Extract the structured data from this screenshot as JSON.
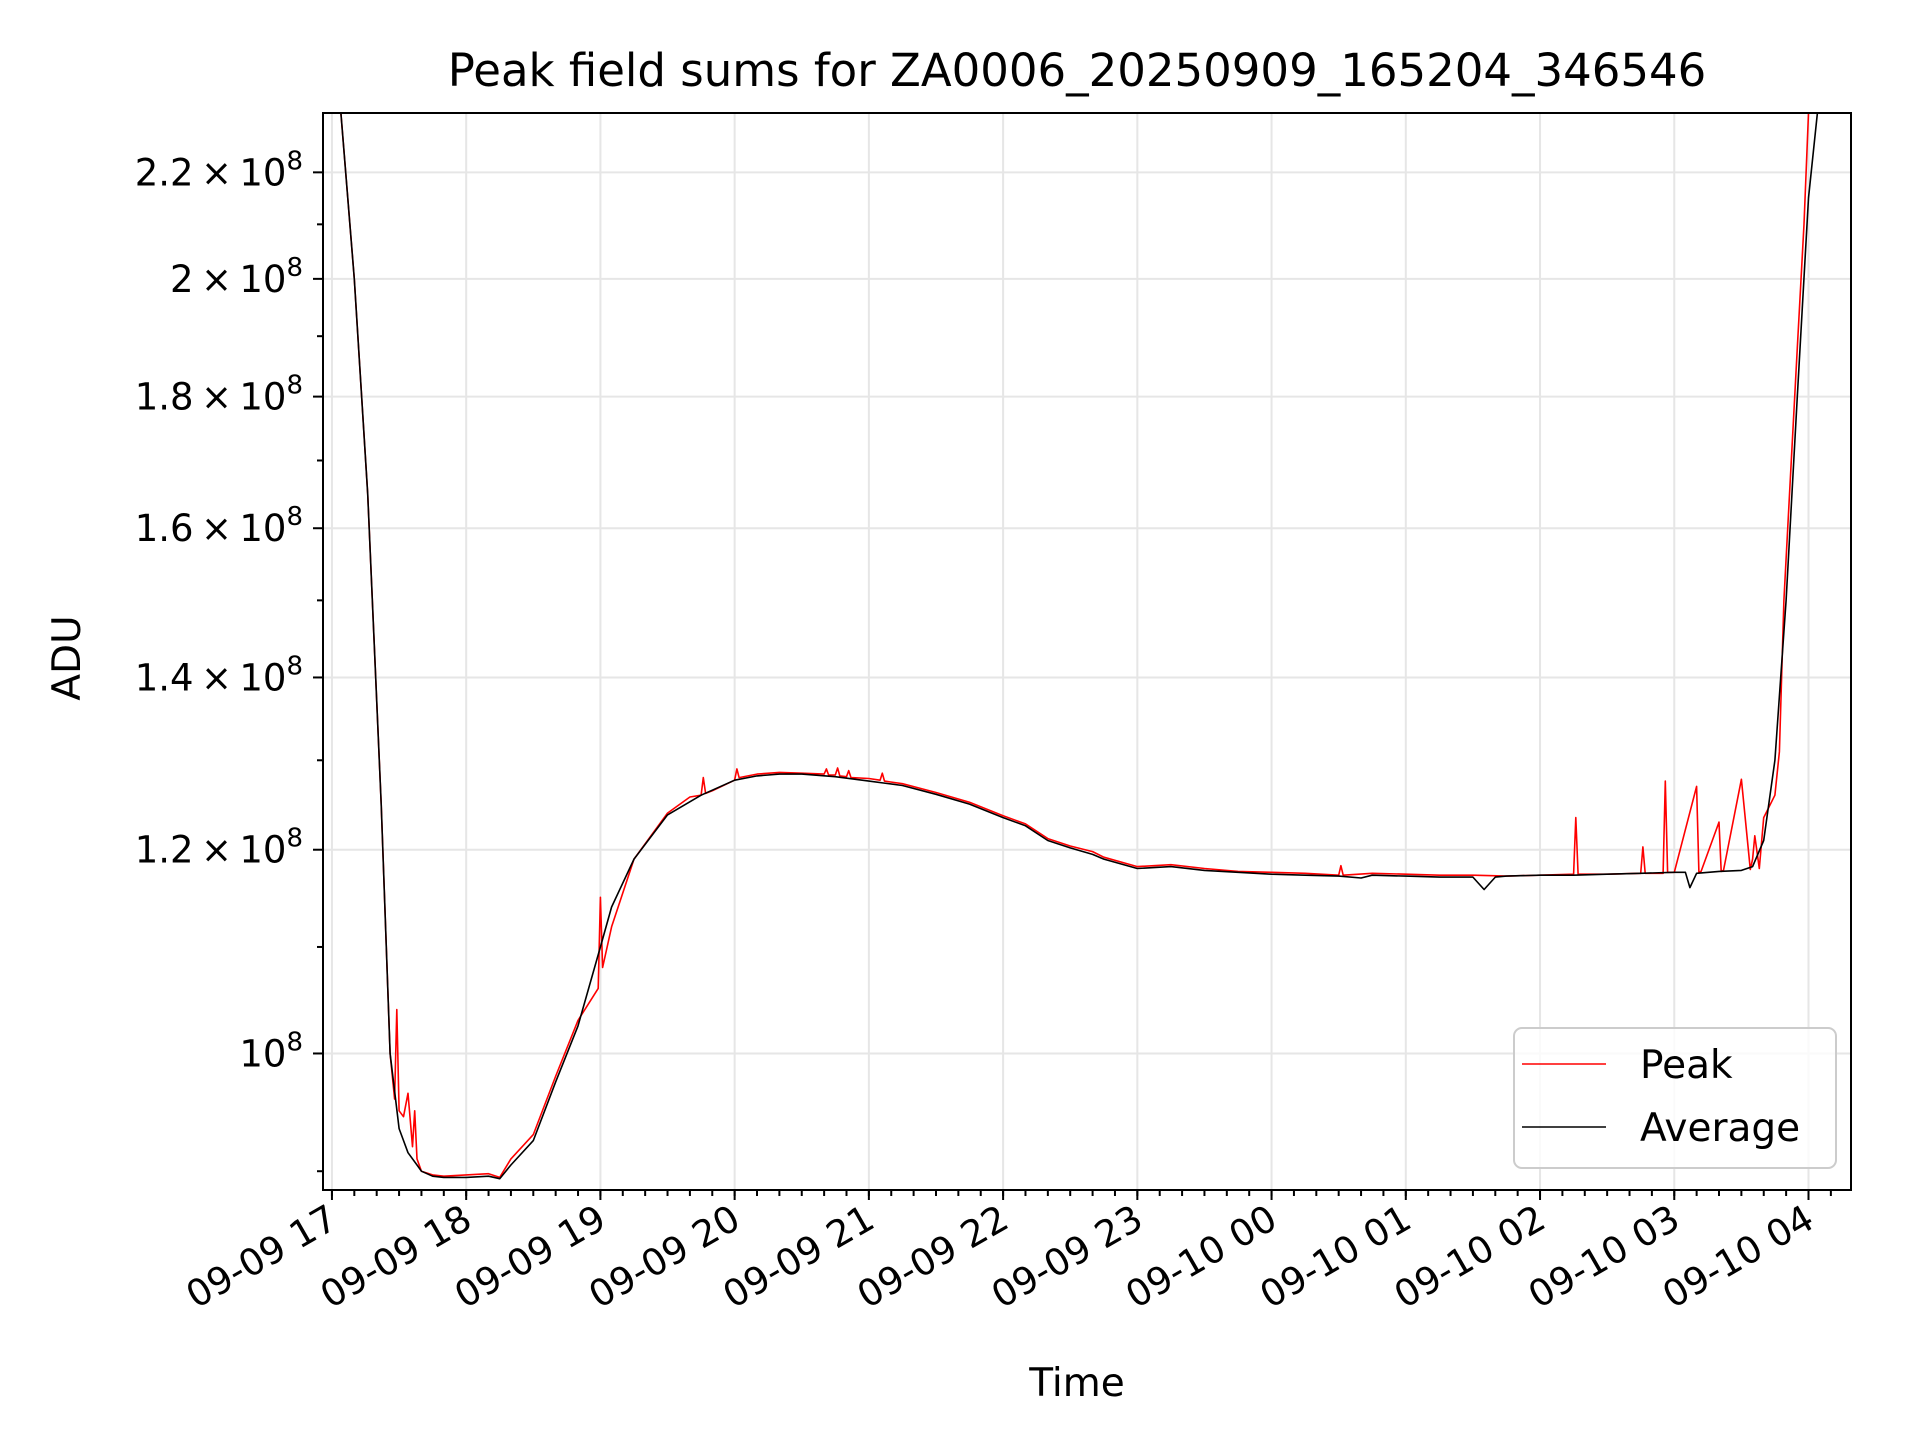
{
  "chart_data": {
    "type": "line",
    "title": "Peak field sums for ZA0006_20250909_165204_346546",
    "xlabel": "Time",
    "ylabel": "ADU",
    "y_scale": "log",
    "grid": true,
    "legend_position": "lower-right",
    "x_ticks": [
      "09-09 17",
      "09-09 18",
      "09-09 19",
      "09-09 20",
      "09-09 21",
      "09-09 22",
      "09-09 23",
      "09-10 00",
      "09-10 01",
      "09-10 02",
      "09-10 03",
      "09-10 04"
    ],
    "y_ticks": [
      {
        "value": 100000000,
        "mantissa": "",
        "exponent": "8"
      },
      {
        "value": 120000000,
        "mantissa": "1.2",
        "exponent": "8"
      },
      {
        "value": 140000000,
        "mantissa": "1.4",
        "exponent": "8"
      },
      {
        "value": 160000000,
        "mantissa": "1.6",
        "exponent": "8"
      },
      {
        "value": 180000000,
        "mantissa": "1.8",
        "exponent": "8"
      },
      {
        "value": 200000000,
        "mantissa": "2",
        "exponent": "8"
      },
      {
        "value": 220000000,
        "mantissa": "2.2",
        "exponent": "8"
      }
    ],
    "xlim": [
      "2025-09-09 16:56",
      "2025-09-10 04:19"
    ],
    "ylim": [
      88500000,
      232000000
    ],
    "series": [
      {
        "name": "Peak",
        "color": "#ff0000",
        "x": [
          "2025-09-09 17:04",
          "2025-09-09 17:10",
          "2025-09-09 17:16",
          "2025-09-09 17:22",
          "2025-09-09 17:26",
          "2025-09-09 17:28",
          "2025-09-09 17:29",
          "2025-09-09 17:30",
          "2025-09-09 17:32",
          "2025-09-09 17:34",
          "2025-09-09 17:36",
          "2025-09-09 17:37",
          "2025-09-09 17:38",
          "2025-09-09 17:40",
          "2025-09-09 17:45",
          "2025-09-09 17:50",
          "2025-09-09 18:00",
          "2025-09-09 18:10",
          "2025-09-09 18:15",
          "2025-09-09 18:20",
          "2025-09-09 18:30",
          "2025-09-09 18:40",
          "2025-09-09 18:50",
          "2025-09-09 18:59",
          "2025-09-09 19:00",
          "2025-09-09 19:01",
          "2025-09-09 19:05",
          "2025-09-09 19:15",
          "2025-09-09 19:30",
          "2025-09-09 19:40",
          "2025-09-09 19:45",
          "2025-09-09 19:46",
          "2025-09-09 19:47",
          "2025-09-09 19:50",
          "2025-09-09 20:00",
          "2025-09-09 20:01",
          "2025-09-09 20:02",
          "2025-09-09 20:10",
          "2025-09-09 20:20",
          "2025-09-09 20:30",
          "2025-09-09 20:40",
          "2025-09-09 20:41",
          "2025-09-09 20:42",
          "2025-09-09 20:45",
          "2025-09-09 20:46",
          "2025-09-09 20:47",
          "2025-09-09 20:50",
          "2025-09-09 20:51",
          "2025-09-09 20:52",
          "2025-09-09 21:00",
          "2025-09-09 21:05",
          "2025-09-09 21:06",
          "2025-09-09 21:07",
          "2025-09-09 21:15",
          "2025-09-09 21:30",
          "2025-09-09 21:45",
          "2025-09-09 21:50",
          "2025-09-09 22:00",
          "2025-09-09 22:10",
          "2025-09-09 22:20",
          "2025-09-09 22:30",
          "2025-09-09 22:40",
          "2025-09-09 22:45",
          "2025-09-09 23:00",
          "2025-09-09 23:15",
          "2025-09-09 23:30",
          "2025-09-09 23:45",
          "2025-09-10 00:00",
          "2025-09-10 00:15",
          "2025-09-10 00:30",
          "2025-09-10 00:31",
          "2025-09-10 00:32",
          "2025-09-10 00:45",
          "2025-09-10 01:00",
          "2025-09-10 01:15",
          "2025-09-10 01:30",
          "2025-09-10 01:45",
          "2025-09-10 02:00",
          "2025-09-10 02:15",
          "2025-09-10 02:16",
          "2025-09-10 02:17",
          "2025-09-10 02:30",
          "2025-09-10 02:45",
          "2025-09-10 02:46",
          "2025-09-10 02:47",
          "2025-09-10 02:55",
          "2025-09-10 02:56",
          "2025-09-10 02:57",
          "2025-09-10 03:00",
          "2025-09-10 03:10",
          "2025-09-10 03:11",
          "2025-09-10 03:12",
          "2025-09-10 03:20",
          "2025-09-10 03:21",
          "2025-09-10 03:22",
          "2025-09-10 03:30",
          "2025-09-10 03:34",
          "2025-09-10 03:35",
          "2025-09-10 03:36",
          "2025-09-10 03:38",
          "2025-09-10 03:40",
          "2025-09-10 03:45",
          "2025-09-10 03:47",
          "2025-09-10 03:48",
          "2025-09-10 03:49",
          "2025-09-10 03:52",
          "2025-09-10 03:55",
          "2025-09-10 03:58",
          "2025-09-10 04:00",
          "2025-09-10 04:04"
        ],
        "y": [
          232000000,
          200000000,
          165000000,
          125000000,
          100000000,
          96000000,
          104000000,
          95000000,
          94500000,
          96500000,
          92000000,
          95000000,
          91000000,
          90000000,
          89700000,
          89600000,
          89700000,
          89800000,
          89500000,
          91000000,
          93000000,
          98000000,
          103000000,
          106000000,
          115000000,
          108000000,
          112000000,
          119000000,
          124000000,
          125800000,
          126000000,
          128000000,
          126200000,
          126500000,
          127700000,
          129000000,
          128000000,
          128400000,
          128600000,
          128500000,
          128400000,
          129000000,
          128300000,
          128300000,
          129100000,
          128200000,
          128100000,
          128800000,
          128000000,
          127900000,
          127700000,
          128500000,
          127600000,
          127300000,
          126300000,
          125200000,
          124700000,
          123700000,
          122800000,
          121200000,
          120400000,
          119800000,
          119200000,
          118200000,
          118400000,
          118000000,
          117700000,
          117600000,
          117500000,
          117300000,
          118300000,
          117300000,
          117500000,
          117400000,
          117300000,
          117300000,
          117200000,
          117300000,
          117400000,
          123500000,
          117400000,
          117400000,
          117500000,
          120300000,
          117500000,
          117500000,
          127600000,
          117600000,
          117600000,
          127000000,
          117600000,
          117700000,
          123000000,
          117700000,
          117800000,
          127800000,
          117900000,
          119000000,
          121500000,
          118000000,
          123500000,
          126000000,
          131000000,
          140000000,
          150000000,
          168000000,
          188000000,
          210000000,
          232000000,
          232000000
        ],
        "stroke_width_px": 1
      },
      {
        "name": "Average",
        "color": "#000000",
        "x": [
          "2025-09-09 17:04",
          "2025-09-09 17:10",
          "2025-09-09 17:16",
          "2025-09-09 17:22",
          "2025-09-09 17:26",
          "2025-09-09 17:30",
          "2025-09-09 17:34",
          "2025-09-09 17:38",
          "2025-09-09 17:40",
          "2025-09-09 17:45",
          "2025-09-09 17:50",
          "2025-09-09 18:00",
          "2025-09-09 18:10",
          "2025-09-09 18:15",
          "2025-09-09 18:20",
          "2025-09-09 18:30",
          "2025-09-09 18:40",
          "2025-09-09 18:50",
          "2025-09-09 19:00",
          "2025-09-09 19:05",
          "2025-09-09 19:15",
          "2025-09-09 19:30",
          "2025-09-09 19:45",
          "2025-09-09 20:00",
          "2025-09-09 20:10",
          "2025-09-09 20:20",
          "2025-09-09 20:30",
          "2025-09-09 20:45",
          "2025-09-09 21:00",
          "2025-09-09 21:15",
          "2025-09-09 21:30",
          "2025-09-09 21:45",
          "2025-09-09 22:00",
          "2025-09-09 22:10",
          "2025-09-09 22:20",
          "2025-09-09 22:30",
          "2025-09-09 22:40",
          "2025-09-09 22:45",
          "2025-09-09 23:00",
          "2025-09-09 23:15",
          "2025-09-09 23:30",
          "2025-09-09 23:45",
          "2025-09-10 00:00",
          "2025-09-10 00:15",
          "2025-09-10 00:30",
          "2025-09-10 00:40",
          "2025-09-10 00:45",
          "2025-09-10 01:00",
          "2025-09-10 01:15",
          "2025-09-10 01:30",
          "2025-09-10 01:35",
          "2025-09-10 01:40",
          "2025-09-10 01:45",
          "2025-09-10 02:00",
          "2025-09-10 02:15",
          "2025-09-10 02:30",
          "2025-09-10 02:45",
          "2025-09-10 03:00",
          "2025-09-10 03:05",
          "2025-09-10 03:07",
          "2025-09-10 03:10",
          "2025-09-10 03:20",
          "2025-09-10 03:30",
          "2025-09-10 03:35",
          "2025-09-10 03:40",
          "2025-09-10 03:45",
          "2025-09-10 03:50",
          "2025-09-10 03:55",
          "2025-09-10 04:00",
          "2025-09-10 04:04"
        ],
        "y": [
          232000000,
          200000000,
          165000000,
          125000000,
          100000000,
          93500000,
          91500000,
          90500000,
          90000000,
          89600000,
          89500000,
          89500000,
          89600000,
          89400000,
          90500000,
          92500000,
          97500000,
          102500000,
          110000000,
          114000000,
          119000000,
          123800000,
          126000000,
          127700000,
          128200000,
          128400000,
          128400000,
          128100000,
          127600000,
          127100000,
          126100000,
          125000000,
          123500000,
          122600000,
          121000000,
          120200000,
          119500000,
          119000000,
          118000000,
          118200000,
          117800000,
          117600000,
          117400000,
          117300000,
          117200000,
          117000000,
          117300000,
          117200000,
          117100000,
          117100000,
          115800000,
          117100000,
          117200000,
          117300000,
          117300000,
          117400000,
          117500000,
          117600000,
          117600000,
          116000000,
          117500000,
          117700000,
          117800000,
          118200000,
          121000000,
          130000000,
          150000000,
          180000000,
          215000000,
          232000000
        ],
        "stroke_width_px": 1
      }
    ]
  }
}
